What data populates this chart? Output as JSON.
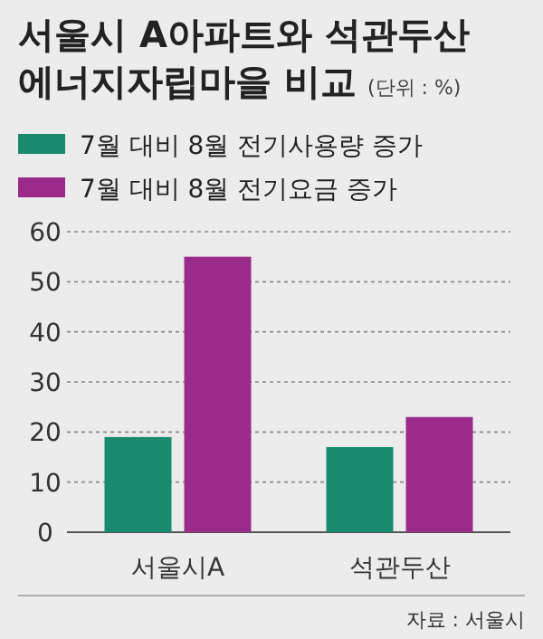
{
  "chart_data": {
    "type": "bar",
    "title": "서울시 A아파트와 석관두산 에너지자립마을 비교",
    "subtitle": "(단위 : %)",
    "categories": [
      "서울시A",
      "석관두산"
    ],
    "series": [
      {
        "name": "7월 대비 8월 전기사용량 증가",
        "color": "#1a8a6e",
        "values": [
          19,
          17
        ]
      },
      {
        "name": "7월 대비 8월 전기요금 증가",
        "color": "#9b2b8b",
        "values": [
          55,
          23
        ]
      }
    ],
    "ylim": [
      0,
      60
    ],
    "yticks": [
      0,
      10,
      20,
      30,
      40,
      50,
      60
    ],
    "grid": "y",
    "legend": "top left",
    "annotations": [
      "자료 : 서울시"
    ]
  }
}
